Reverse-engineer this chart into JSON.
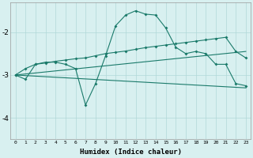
{
  "xlabel": "Humidex (Indice chaleur)",
  "bg_color": "#d8f0f0",
  "grid_color": "#b0d8d8",
  "line_color": "#1a7a6a",
  "xlim": [
    -0.5,
    23.5
  ],
  "ylim": [
    -4.5,
    -1.3
  ],
  "yticks": [
    -4,
    -3,
    -2
  ],
  "xticks": [
    0,
    1,
    2,
    3,
    4,
    5,
    6,
    7,
    8,
    9,
    10,
    11,
    12,
    13,
    14,
    15,
    16,
    17,
    18,
    19,
    20,
    21,
    22,
    23
  ],
  "line1_x": [
    0,
    1,
    2,
    3,
    4,
    5,
    6,
    7,
    8,
    9,
    10,
    11,
    12,
    13,
    14,
    15,
    16,
    17,
    18,
    19,
    20,
    21,
    22,
    23
  ],
  "line1_y": [
    -3.0,
    -3.1,
    -2.75,
    -2.7,
    -2.7,
    -2.75,
    -2.85,
    -3.7,
    -3.2,
    -2.55,
    -1.85,
    -1.6,
    -1.5,
    -1.58,
    -1.6,
    -1.9,
    -2.35,
    -2.5,
    -2.45,
    -2.5,
    -2.75,
    -2.75,
    -3.2,
    -3.25
  ],
  "line2_x": [
    0,
    1,
    2,
    3,
    4,
    5,
    6,
    7,
    8,
    9,
    10,
    11,
    12,
    13,
    14,
    15,
    16,
    17,
    18,
    19,
    20,
    21,
    22,
    23
  ],
  "line2_y": [
    -3.0,
    -2.85,
    -2.75,
    -2.72,
    -2.68,
    -2.65,
    -2.62,
    -2.6,
    -2.55,
    -2.5,
    -2.47,
    -2.44,
    -2.4,
    -2.36,
    -2.33,
    -2.3,
    -2.27,
    -2.24,
    -2.21,
    -2.18,
    -2.15,
    -2.12,
    -2.45,
    -2.6
  ],
  "line3_x": [
    0,
    23
  ],
  "line3_y": [
    -3.0,
    -3.3
  ],
  "line4_x": [
    0,
    23
  ],
  "line4_y": [
    -3.0,
    -2.45
  ]
}
